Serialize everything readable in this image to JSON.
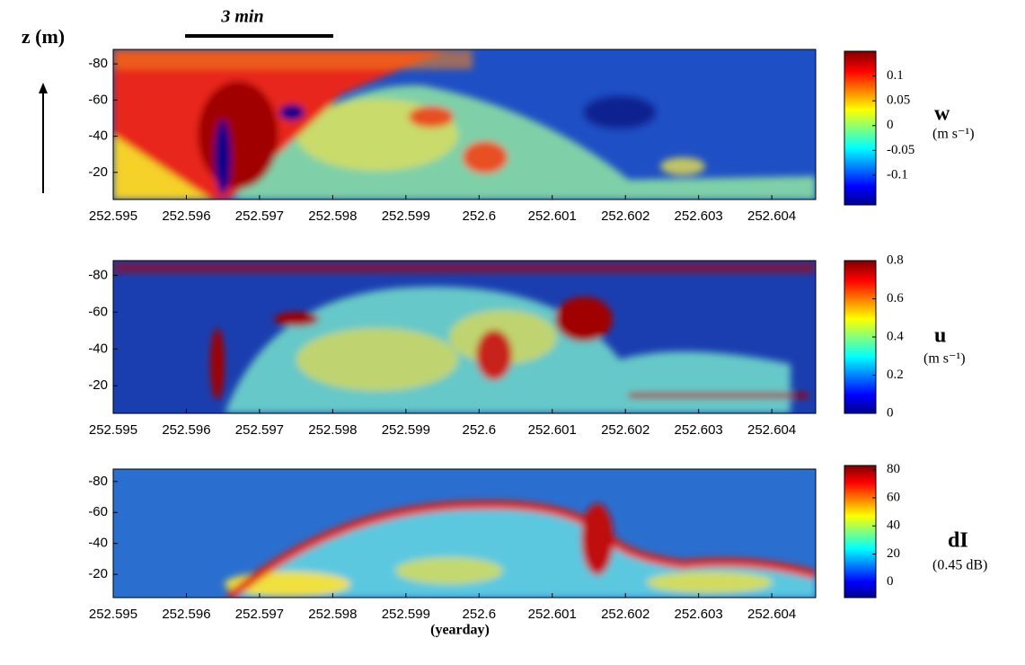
{
  "scale_bar": "3 min",
  "chart_data": [
    {
      "type": "heatmap",
      "y_label": "z (m)",
      "colorbar_label": "w",
      "colorbar_unit": "(m s⁻¹)",
      "xlim": [
        252.595,
        252.6046
      ],
      "xticks": [
        252.595,
        252.596,
        252.597,
        252.598,
        252.599,
        252.6,
        252.601,
        252.602,
        252.603,
        252.604
      ],
      "ylim": [
        -5,
        -88
      ],
      "yticks": [
        -80,
        -60,
        -40,
        -20
      ],
      "clim": [
        -0.16,
        0.15
      ],
      "cticks": [
        -0.1,
        -0.05,
        0,
        0.05,
        0.1
      ],
      "colormap": "jet"
    },
    {
      "type": "heatmap",
      "colorbar_label": "u",
      "colorbar_unit": "(m s⁻¹)",
      "xlim": [
        252.595,
        252.6046
      ],
      "xticks": [
        252.595,
        252.596,
        252.597,
        252.598,
        252.599,
        252.6,
        252.601,
        252.602,
        252.603,
        252.604
      ],
      "ylim": [
        -5,
        -88
      ],
      "yticks": [
        -80,
        -60,
        -40,
        -20
      ],
      "clim": [
        0,
        0.8
      ],
      "cticks": [
        0,
        0.2,
        0.4,
        0.6,
        0.8
      ],
      "colormap": "jet"
    },
    {
      "type": "heatmap",
      "colorbar_label": "dI",
      "colorbar_unit": "(0.45 dB)",
      "x_label": "(yearday)",
      "xlim": [
        252.595,
        252.6046
      ],
      "xticks": [
        252.595,
        252.596,
        252.597,
        252.598,
        252.599,
        252.6,
        252.601,
        252.602,
        252.603,
        252.604
      ],
      "ylim": [
        -5,
        -88
      ],
      "yticks": [
        -80,
        -60,
        -40,
        -20
      ],
      "clim": [
        -11,
        83
      ],
      "cticks": [
        0,
        20,
        40,
        60,
        80
      ],
      "colormap": "jet"
    }
  ]
}
